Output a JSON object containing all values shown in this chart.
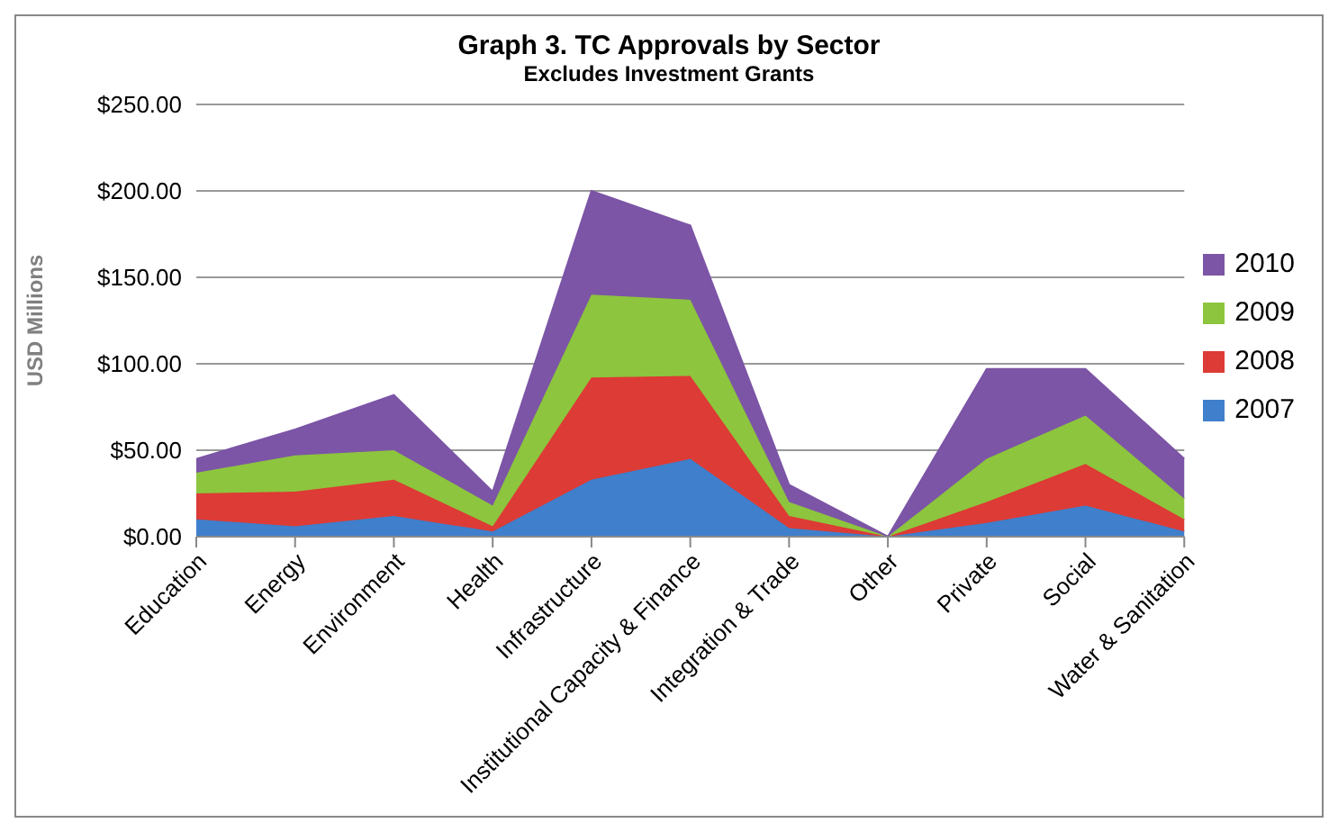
{
  "chart_data": {
    "type": "area",
    "title": "Graph 3. TC Approvals by Sector",
    "subtitle": "Excludes Investment Grants",
    "ylabel": "USD Millions",
    "categories": [
      "Education",
      "Energy",
      "Environment",
      "Health",
      "Infrastructure",
      "Institutional Capacity & Finance",
      "Integration & Trade",
      "Other",
      "Private",
      "Social",
      "Water & Sanitation"
    ],
    "stacked": true,
    "grid": "y",
    "legend": "right",
    "ylim": [
      0,
      250
    ],
    "yticks": [
      {
        "value": 0,
        "label": "$0.00"
      },
      {
        "value": 50,
        "label": "$50.00"
      },
      {
        "value": 100,
        "label": "$100.00"
      },
      {
        "value": 150,
        "label": "$150.00"
      },
      {
        "value": 200,
        "label": "$200.00"
      },
      {
        "value": 250,
        "label": "$250.00"
      }
    ],
    "series": [
      {
        "name": "2007",
        "color": "#3f7fcc",
        "values": [
          10,
          6,
          12,
          3,
          33,
          45,
          5,
          0,
          8,
          18,
          3
        ]
      },
      {
        "name": "2008",
        "color": "#dd3b35",
        "values": [
          15,
          20,
          21,
          3,
          59,
          48,
          7,
          0,
          12,
          24,
          7
        ]
      },
      {
        "name": "2009",
        "color": "#8dc53e",
        "values": [
          12,
          21,
          17,
          12,
          48,
          44,
          8,
          0,
          25,
          28,
          12
        ]
      },
      {
        "name": "2010",
        "color": "#7c55a6",
        "values": [
          8,
          15,
          32,
          8,
          60,
          43,
          10,
          0,
          52,
          27,
          23
        ]
      }
    ]
  }
}
